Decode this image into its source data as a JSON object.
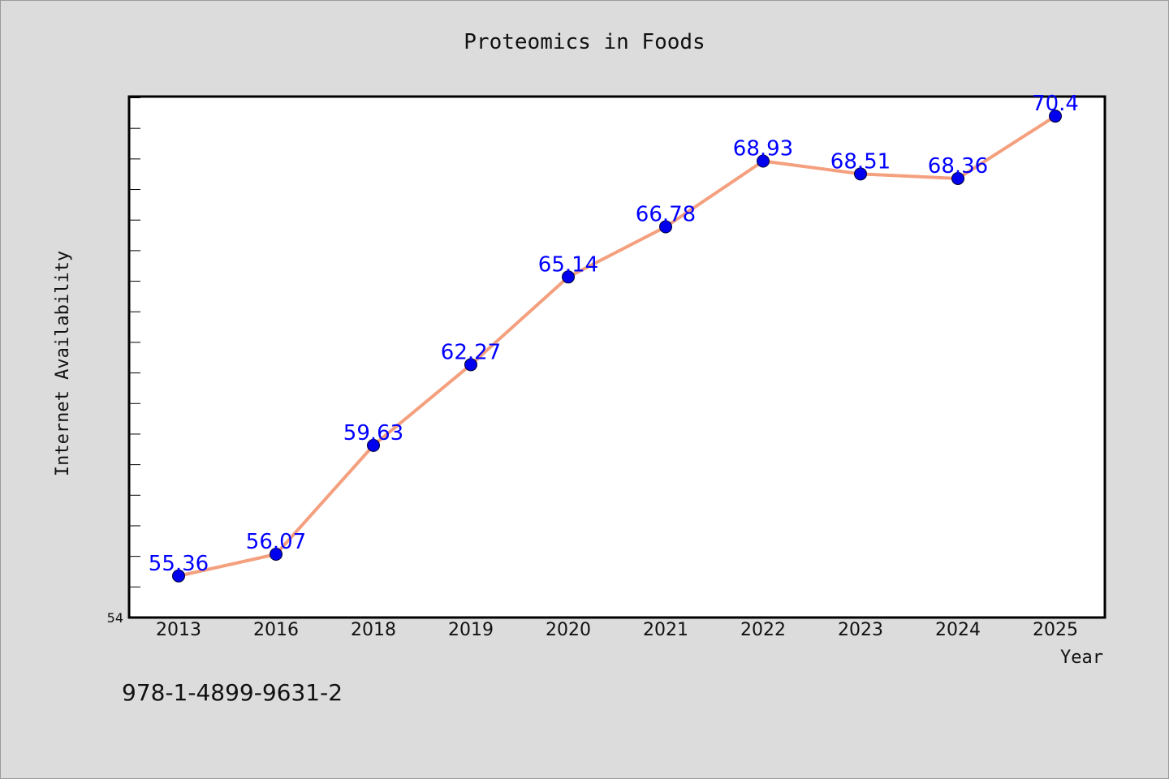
{
  "chart_data": {
    "type": "line",
    "title": "Proteomics in Foods",
    "xlabel": "Year",
    "ylabel": "Internet Availability",
    "categories": [
      "2013",
      "2016",
      "2018",
      "2019",
      "2020",
      "2021",
      "2022",
      "2023",
      "2024",
      "2025"
    ],
    "series": [
      {
        "values": [
          55.36,
          56.07,
          59.63,
          62.27,
          65.14,
          66.78,
          68.93,
          68.51,
          68.36,
          70.4
        ],
        "labels": [
          "55.36",
          "56.07",
          "59.63",
          "62.27",
          "65.14",
          "66.78",
          "68.93",
          "68.51",
          "68.36",
          "70.4"
        ]
      }
    ],
    "ylim": [
      54,
      71.04
    ],
    "y_tick_label": "54",
    "y_minor_tick_step": 1,
    "grid": false,
    "colors": {
      "line": "#f4a07e",
      "marker": "#0000ee",
      "data_label": "#0000ff"
    }
  },
  "footer": {
    "isbn": "978-1-4899-9631-2"
  }
}
